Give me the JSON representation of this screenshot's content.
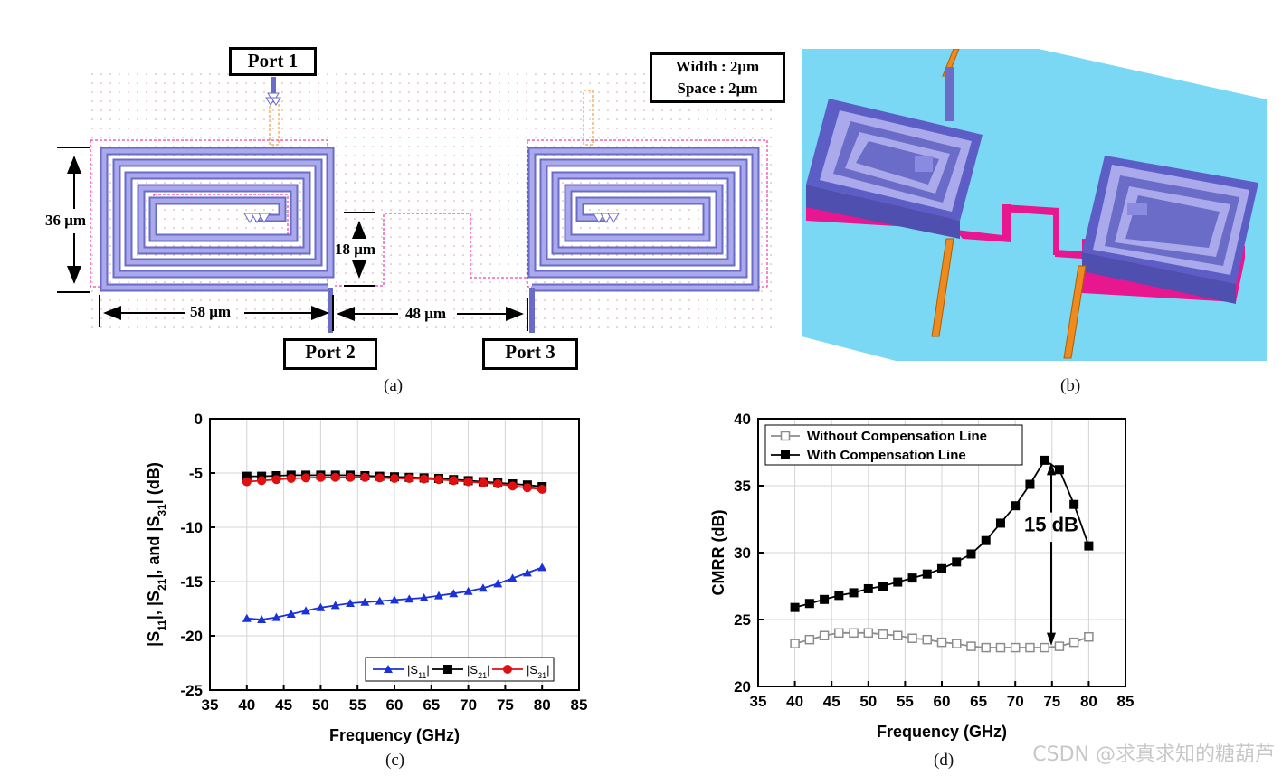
{
  "panel_a": {
    "caption": "(a)",
    "port1": "Port 1",
    "port2": "Port 2",
    "port3": "Port 3",
    "width_label": "Width : 2μm",
    "space_label": "Space : 2μm",
    "dim_height": "36 μm",
    "dim_gap": "18 μm",
    "dim_length": "58 μm",
    "dim_sep": "48 μm"
  },
  "panel_b": {
    "caption": "(b)"
  },
  "panel_c": {
    "caption": "(c)"
  },
  "panel_d": {
    "caption": "(d)",
    "annotation": "15 dB"
  },
  "watermark": "CSDN @求真求知的糖葫芦",
  "colors": {
    "spiral": "#8888dd",
    "pad": "#e8178f",
    "lead": "#ee8a1e",
    "substrate": "#7ad8f4",
    "s11": "#1a32d8",
    "s21": "#000000",
    "s31": "#e01010",
    "without": "#8c8c8c"
  },
  "chart_data": [
    {
      "type": "line",
      "id": "c",
      "xlabel": "Frequency (GHz)",
      "ylabel": "|S11|, |S21|, and |S31| (dB)",
      "xlim": [
        35,
        85
      ],
      "ylim": [
        -25,
        0
      ],
      "xticks": [
        35,
        40,
        45,
        50,
        55,
        60,
        65,
        70,
        75,
        80,
        85
      ],
      "yticks": [
        0,
        -5,
        -10,
        -15,
        -20,
        -25
      ],
      "grid": true,
      "legend": "bottom-right",
      "x": [
        40,
        42,
        44,
        46,
        48,
        50,
        52,
        54,
        56,
        58,
        60,
        62,
        64,
        66,
        68,
        70,
        72,
        74,
        76,
        78,
        80
      ],
      "series": [
        {
          "name": "|S11|",
          "sub": "11",
          "marker": "triangle",
          "color": "#1a32d8",
          "values": [
            -18.4,
            -18.5,
            -18.3,
            -18.0,
            -17.7,
            -17.4,
            -17.2,
            -17.0,
            -16.9,
            -16.8,
            -16.7,
            -16.6,
            -16.5,
            -16.3,
            -16.1,
            -15.9,
            -15.6,
            -15.2,
            -14.7,
            -14.2,
            -13.7
          ]
        },
        {
          "name": "|S21|",
          "sub": "21",
          "marker": "square",
          "color": "#000000",
          "values": [
            -5.3,
            -5.3,
            -5.25,
            -5.2,
            -5.2,
            -5.2,
            -5.2,
            -5.2,
            -5.25,
            -5.3,
            -5.35,
            -5.4,
            -5.45,
            -5.5,
            -5.6,
            -5.7,
            -5.8,
            -5.9,
            -6.0,
            -6.1,
            -6.25
          ]
        },
        {
          "name": "|S31|",
          "sub": "31",
          "marker": "circle",
          "color": "#e01010",
          "values": [
            -5.8,
            -5.7,
            -5.6,
            -5.5,
            -5.45,
            -5.4,
            -5.4,
            -5.4,
            -5.4,
            -5.45,
            -5.5,
            -5.5,
            -5.55,
            -5.6,
            -5.7,
            -5.8,
            -5.9,
            -6.0,
            -6.2,
            -6.35,
            -6.5
          ]
        }
      ]
    },
    {
      "type": "line",
      "id": "d",
      "xlabel": "Frequency (GHz)",
      "ylabel": "CMRR (dB)",
      "xlim": [
        35,
        85
      ],
      "ylim": [
        20,
        40
      ],
      "xticks": [
        35,
        40,
        45,
        50,
        55,
        60,
        65,
        70,
        75,
        80,
        85
      ],
      "yticks": [
        40,
        35,
        30,
        25,
        20
      ],
      "grid": true,
      "legend": "top-left",
      "x": [
        40,
        42,
        44,
        46,
        48,
        50,
        52,
        54,
        56,
        58,
        60,
        62,
        64,
        66,
        68,
        70,
        72,
        74,
        76,
        78,
        80
      ],
      "series": [
        {
          "name": "Without Compensation Line",
          "marker": "open-square",
          "color": "#8c8c8c",
          "values": [
            23.2,
            23.5,
            23.8,
            24.0,
            24.0,
            24.0,
            23.9,
            23.8,
            23.6,
            23.5,
            23.3,
            23.2,
            23.0,
            22.9,
            22.9,
            22.9,
            22.9,
            22.9,
            23.0,
            23.3,
            23.7
          ]
        },
        {
          "name": "With Compensation Line",
          "marker": "square",
          "color": "#000000",
          "values": [
            25.9,
            26.2,
            26.5,
            26.8,
            27.0,
            27.3,
            27.5,
            27.8,
            28.1,
            28.4,
            28.8,
            29.3,
            29.9,
            30.9,
            32.2,
            33.5,
            35.1,
            36.9,
            36.2,
            33.6,
            30.5
          ]
        }
      ]
    }
  ]
}
